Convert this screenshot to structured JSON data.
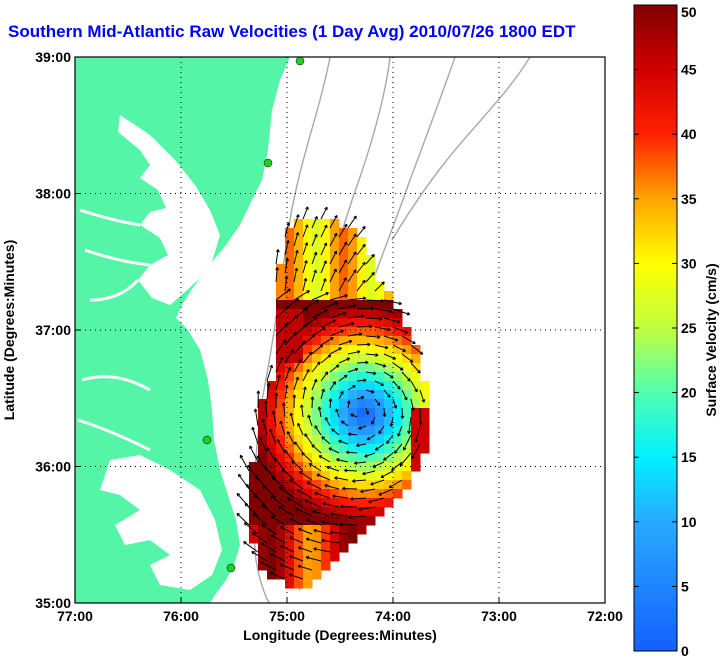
{
  "title": "Southern Mid-Atlantic Raw Velocities (1 Day Avg) 2010/07/26 1800 EDT",
  "colors": {
    "title": "#0000ff",
    "land": "#55f5a8",
    "water": "#ffffff",
    "isobath": "#a8a8a8",
    "vector": "#000000",
    "station": "#22cc22"
  },
  "map": {
    "xlabel": "Longitude (Degrees:Minutes)",
    "ylabel": "Latitude (Degrees:Minutes)",
    "lon_range": [
      -77,
      -72
    ],
    "lat_range": [
      35,
      39
    ],
    "x_ticks": [
      {
        "value": -77,
        "label": "77:00"
      },
      {
        "value": -76,
        "label": "76:00"
      },
      {
        "value": -75,
        "label": "75:00"
      },
      {
        "value": -74,
        "label": "74:00"
      },
      {
        "value": -73,
        "label": "73:00"
      },
      {
        "value": -72,
        "label": "72:00"
      }
    ],
    "y_ticks": [
      {
        "value": 35,
        "label": "35:00"
      },
      {
        "value": 36,
        "label": "36:00"
      },
      {
        "value": 37,
        "label": "37:00"
      },
      {
        "value": 38,
        "label": "38:00"
      },
      {
        "value": 39,
        "label": "39:00"
      }
    ],
    "grid": "dotted"
  },
  "colorbar": {
    "label": "Surface Velocity (cm/s)",
    "min": 0,
    "max": 50,
    "ticks": [
      {
        "value": 0,
        "label": "0"
      },
      {
        "value": 5,
        "label": "5"
      },
      {
        "value": 10,
        "label": "10"
      },
      {
        "value": 15,
        "label": "15"
      },
      {
        "value": 20,
        "label": "20"
      },
      {
        "value": 25,
        "label": "25"
      },
      {
        "value": 30,
        "label": "30"
      },
      {
        "value": 35,
        "label": "35"
      },
      {
        "value": 40,
        "label": "40"
      },
      {
        "value": 45,
        "label": "45"
      },
      {
        "value": 50,
        "label": "50"
      }
    ]
  }
}
